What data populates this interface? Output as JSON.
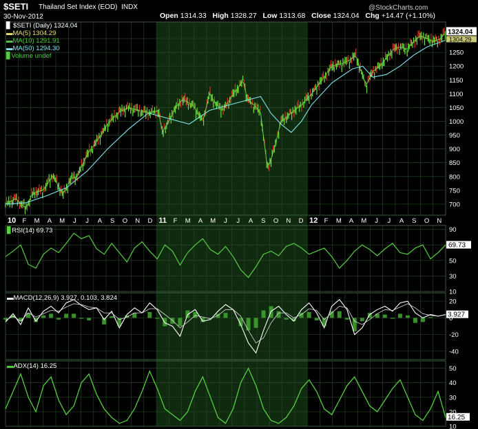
{
  "header": {
    "symbol": "$SETI",
    "name": "Thailand Set Index (EOD)",
    "exchange": "INDX",
    "date": "30-Nov-2012",
    "watermark": "@StockCharts.com",
    "open_label": "Open",
    "open": "1314.33",
    "high_label": "High",
    "high": "1328.27",
    "low_label": "Low",
    "low": "1313.68",
    "close_label": "Close",
    "close": "1324.04",
    "chg_label": "Chg",
    "chg": "+14.47 (+1.10%)"
  },
  "legend": [
    {
      "text": "$SETI (Daily) 1324.04",
      "color": "#ffffff"
    },
    {
      "text": "MA(5) 1304.29",
      "color": "#e8e070"
    },
    {
      "text": "MA(10) 1291.91",
      "color": "#4fcf40"
    },
    {
      "text": "MA(50) 1294.30",
      "color": "#7fe6f0"
    },
    {
      "text": "Volume undef",
      "color": "#4fcf40"
    }
  ],
  "colors": {
    "background": "#000000",
    "grid": "#2a4a2a",
    "shade": "#0f2a0f",
    "price": "#6fe040",
    "down": "#d63020",
    "ma50": "#7fe6f0",
    "indicator": "#56d040"
  },
  "panel_labels": {
    "rsi": "RSI(14) 69.73",
    "macd": "MACD(12,26,9) 3.927, 0.103, 3.824",
    "adx": "ADX(14) 16.25"
  },
  "chart_data": [
    {
      "type": "line",
      "title": "$SETI (Daily) 1324.04",
      "x_tick_labels": [
        "10",
        "F",
        "M",
        "A",
        "M",
        "J",
        "J",
        "A",
        "S",
        "O",
        "N",
        "D",
        "11",
        "F",
        "M",
        "A",
        "M",
        "J",
        "J",
        "A",
        "S",
        "O",
        "N",
        "D",
        "12",
        "F",
        "M",
        "A",
        "M",
        "J",
        "J",
        "A",
        "S",
        "O",
        "N"
      ],
      "ylim": [
        660,
        1360
      ],
      "y_ticks": [
        700,
        750,
        800,
        850,
        900,
        950,
        1000,
        1050,
        1100,
        1150,
        1200,
        1250,
        1300
      ],
      "last_value_label": "1324.04",
      "ma5_label": "1304.29",
      "series": [
        {
          "name": "$SETI (Daily)",
          "x": [
            0,
            15,
            30,
            40,
            55,
            70,
            80,
            85,
            95,
            105,
            120,
            135,
            150,
            165,
            180,
            195,
            210,
            225,
            230,
            240,
            250,
            260,
            275,
            290,
            300,
            310,
            320,
            335,
            350,
            355,
            365,
            375,
            385,
            390,
            395,
            405,
            415,
            425,
            435,
            450,
            465,
            480,
            495,
            505,
            515,
            520,
            530,
            540,
            550,
            560,
            570,
            580,
            590,
            600,
            610,
            620,
            630,
            640,
            647
          ],
          "values": [
            700,
            720,
            685,
            740,
            750,
            805,
            755,
            735,
            790,
            800,
            880,
            930,
            990,
            1030,
            1050,
            1040,
            1030,
            1040,
            960,
            1000,
            1050,
            1080,
            1060,
            1000,
            1100,
            1060,
            1040,
            1100,
            1150,
            1080,
            1060,
            1030,
            830,
            860,
            900,
            1000,
            1020,
            1040,
            1060,
            1100,
            1150,
            1200,
            1210,
            1220,
            1240,
            1200,
            1130,
            1180,
            1200,
            1230,
            1260,
            1270,
            1260,
            1290,
            1310,
            1300,
            1290,
            1300,
            1324
          ]
        },
        {
          "name": "MA(50)",
          "x": [
            0,
            30,
            60,
            90,
            120,
            150,
            180,
            210,
            240,
            270,
            300,
            330,
            360,
            375,
            390,
            405,
            420,
            435,
            450,
            480,
            510,
            525,
            540,
            560,
            580,
            600,
            620,
            647
          ],
          "values": [
            700,
            705,
            730,
            760,
            820,
            900,
            970,
            1030,
            1010,
            990,
            1040,
            1060,
            1080,
            1090,
            1030,
            990,
            960,
            1000,
            1060,
            1140,
            1190,
            1200,
            1160,
            1170,
            1200,
            1240,
            1270,
            1294
          ]
        }
      ]
    },
    {
      "type": "line",
      "title": "RSI(14)",
      "ylim": [
        10,
        95
      ],
      "y_ticks": [
        10,
        30,
        50,
        70,
        90
      ],
      "last_value_label": "69.73",
      "values": [
        55,
        62,
        70,
        45,
        40,
        58,
        66,
        60,
        72,
        85,
        78,
        82,
        65,
        58,
        72,
        60,
        48,
        66,
        74,
        62,
        52,
        70,
        62,
        44,
        60,
        70,
        78,
        64,
        58,
        68,
        55,
        38,
        28,
        42,
        58,
        62,
        56,
        68,
        72,
        66,
        58,
        62,
        66,
        55,
        40,
        50,
        62,
        70,
        64,
        56,
        65,
        72,
        60,
        58,
        66,
        70,
        52,
        60,
        70
      ]
    },
    {
      "type": "line",
      "title": "MACD(12,26,9)",
      "ylim": [
        -50,
        30
      ],
      "y_ticks": [
        -40,
        -20,
        0,
        20
      ],
      "last_value_label": "3.927",
      "signal_value_label": "3.824",
      "macd": [
        -5,
        5,
        -8,
        12,
        -4,
        8,
        14,
        6,
        18,
        22,
        15,
        10,
        12,
        -2,
        8,
        -12,
        4,
        12,
        6,
        18,
        10,
        -6,
        -10,
        -22,
        4,
        10,
        -4,
        -2,
        8,
        16,
        10,
        -8,
        -30,
        -42,
        -15,
        8,
        14,
        4,
        -4,
        10,
        18,
        6,
        -12,
        14,
        22,
        10,
        -20,
        -12,
        4,
        10,
        14,
        8,
        18,
        20,
        6,
        0,
        4,
        2,
        4
      ],
      "signal": [
        -3,
        2,
        -4,
        6,
        1,
        5,
        9,
        8,
        13,
        17,
        16,
        13,
        12,
        6,
        6,
        -2,
        1,
        6,
        6,
        11,
        11,
        4,
        -3,
        -12,
        -5,
        3,
        1,
        -1,
        3,
        10,
        10,
        2,
        -15,
        -30,
        -24,
        -6,
        6,
        6,
        0,
        4,
        11,
        9,
        -2,
        6,
        14,
        12,
        -4,
        -8,
        -2,
        5,
        10,
        9,
        13,
        17,
        12,
        5,
        3,
        2,
        3.8
      ]
    },
    {
      "type": "line",
      "title": "ADX(14)",
      "ylim": [
        10,
        55
      ],
      "y_ticks": [
        10,
        20,
        30,
        40,
        50
      ],
      "last_value_label": "16.25",
      "values": [
        22,
        34,
        46,
        30,
        20,
        38,
        44,
        28,
        18,
        24,
        40,
        46,
        32,
        22,
        16,
        12,
        14,
        22,
        34,
        48,
        36,
        22,
        18,
        14,
        20,
        34,
        44,
        30,
        16,
        12,
        22,
        40,
        50,
        38,
        22,
        14,
        12,
        16,
        24,
        36,
        42,
        34,
        22,
        18,
        28,
        38,
        44,
        34,
        24,
        20,
        28,
        36,
        42,
        30,
        18,
        14,
        22,
        34,
        16
      ]
    }
  ]
}
